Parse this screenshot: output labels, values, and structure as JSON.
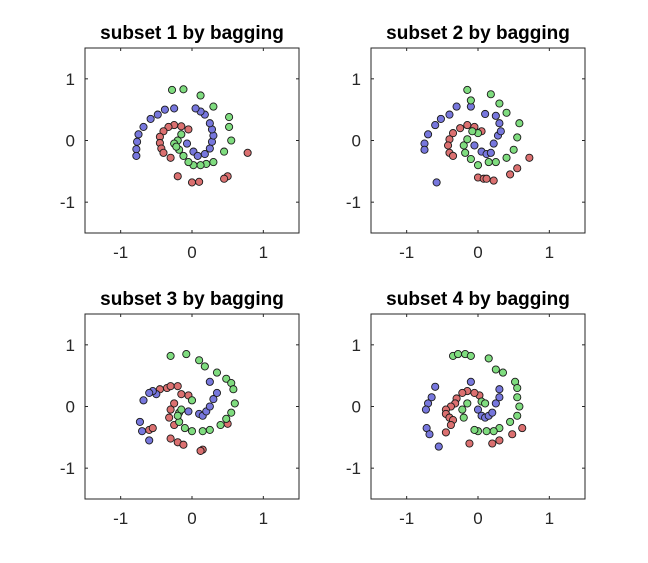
{
  "figure": {
    "background": "#ffffff"
  },
  "colors": {
    "red": "#db7070",
    "blue": "#7777dd",
    "green": "#7fdc7f"
  },
  "chart_data": [
    {
      "type": "scatter",
      "title": "subset 1 by bagging",
      "xlim": [
        -1.5,
        1.5
      ],
      "ylim": [
        -1.5,
        1.5
      ],
      "xticks": [
        -1,
        0,
        1
      ],
      "yticks": [
        -1,
        0,
        1
      ],
      "xlabel": "",
      "ylabel": "",
      "grid": false,
      "series": [
        {
          "color": "red",
          "points": [
            [
              -0.05,
              0.18
            ],
            [
              -0.15,
              0.23
            ],
            [
              -0.25,
              0.25
            ],
            [
              -0.33,
              0.22
            ],
            [
              -0.4,
              0.15
            ],
            [
              -0.45,
              0.06
            ],
            [
              -0.45,
              -0.04
            ],
            [
              -0.43,
              -0.13
            ],
            [
              -0.4,
              -0.2
            ],
            [
              -0.3,
              -0.28
            ],
            [
              -0.2,
              -0.58
            ],
            [
              0.0,
              -0.68
            ],
            [
              0.1,
              -0.67
            ],
            [
              0.5,
              -0.58
            ],
            [
              0.45,
              -0.62
            ],
            [
              0.78,
              -0.2
            ]
          ]
        },
        {
          "color": "blue",
          "points": [
            [
              -0.07,
              -0.05
            ],
            [
              0.02,
              -0.18
            ],
            [
              0.08,
              -0.25
            ],
            [
              0.18,
              -0.22
            ],
            [
              0.25,
              -0.13
            ],
            [
              0.28,
              -0.02
            ],
            [
              0.3,
              0.08
            ],
            [
              0.28,
              0.18
            ],
            [
              0.25,
              0.28
            ],
            [
              0.18,
              0.42
            ],
            [
              0.12,
              0.47
            ],
            [
              0.05,
              0.52
            ],
            [
              -0.25,
              0.52
            ],
            [
              -0.38,
              0.5
            ],
            [
              -0.48,
              0.42
            ],
            [
              -0.58,
              0.35
            ],
            [
              -0.68,
              0.22
            ],
            [
              -0.75,
              0.1
            ],
            [
              -0.77,
              -0.02
            ],
            [
              -0.78,
              -0.14
            ],
            [
              -0.78,
              -0.25
            ]
          ]
        },
        {
          "color": "green",
          "points": [
            [
              -0.28,
              0.82
            ],
            [
              -0.12,
              0.83
            ],
            [
              0.12,
              0.73
            ],
            [
              0.3,
              0.55
            ],
            [
              0.52,
              0.38
            ],
            [
              0.52,
              0.22
            ],
            [
              0.55,
              0.0
            ],
            [
              0.45,
              -0.18
            ],
            [
              0.3,
              -0.35
            ],
            [
              0.2,
              -0.38
            ],
            [
              0.12,
              -0.4
            ],
            [
              0.02,
              -0.4
            ],
            [
              -0.05,
              -0.35
            ],
            [
              -0.12,
              -0.25
            ],
            [
              -0.18,
              -0.15
            ],
            [
              -0.2,
              0.0
            ],
            [
              -0.15,
              0.1
            ],
            [
              -0.25,
              -0.05
            ],
            [
              -0.22,
              -0.1
            ]
          ]
        }
      ]
    },
    {
      "type": "scatter",
      "title": "subset 2 by bagging",
      "xlim": [
        -1.5,
        1.5
      ],
      "ylim": [
        -1.5,
        1.5
      ],
      "xticks": [
        -1,
        0,
        1
      ],
      "yticks": [
        -1,
        0,
        1
      ],
      "xlabel": "",
      "ylabel": "",
      "grid": false,
      "series": [
        {
          "color": "red",
          "points": [
            [
              0.05,
              0.15
            ],
            [
              -0.05,
              0.22
            ],
            [
              -0.15,
              0.25
            ],
            [
              -0.25,
              0.2
            ],
            [
              -0.35,
              0.12
            ],
            [
              -0.4,
              0.02
            ],
            [
              -0.42,
              -0.08
            ],
            [
              -0.4,
              -0.2
            ],
            [
              -0.35,
              -0.25
            ],
            [
              0.0,
              -0.6
            ],
            [
              0.08,
              -0.62
            ],
            [
              0.12,
              -0.62
            ],
            [
              0.22,
              -0.65
            ],
            [
              0.45,
              -0.55
            ],
            [
              0.55,
              -0.45
            ],
            [
              0.72,
              -0.28
            ]
          ]
        },
        {
          "color": "blue",
          "points": [
            [
              -0.05,
              -0.08
            ],
            [
              0.05,
              -0.18
            ],
            [
              0.12,
              -0.22
            ],
            [
              0.18,
              -0.2
            ],
            [
              0.22,
              -0.05
            ],
            [
              0.28,
              0.08
            ],
            [
              0.32,
              0.15
            ],
            [
              0.3,
              0.28
            ],
            [
              0.25,
              0.4
            ],
            [
              0.1,
              0.43
            ],
            [
              -0.1,
              0.55
            ],
            [
              -0.3,
              0.55
            ],
            [
              -0.4,
              0.42
            ],
            [
              -0.52,
              0.35
            ],
            [
              -0.6,
              0.25
            ],
            [
              -0.7,
              0.1
            ],
            [
              -0.75,
              -0.05
            ],
            [
              -0.75,
              -0.15
            ],
            [
              -0.58,
              -0.68
            ]
          ]
        },
        {
          "color": "green",
          "points": [
            [
              -0.15,
              0.82
            ],
            [
              -0.1,
              0.65
            ],
            [
              0.18,
              0.75
            ],
            [
              0.3,
              0.6
            ],
            [
              0.4,
              0.45
            ],
            [
              0.58,
              0.28
            ],
            [
              0.55,
              0.05
            ],
            [
              0.5,
              -0.15
            ],
            [
              0.4,
              -0.28
            ],
            [
              0.25,
              -0.35
            ],
            [
              0.15,
              -0.35
            ],
            [
              0.0,
              -0.4
            ],
            [
              -0.1,
              -0.3
            ],
            [
              -0.18,
              -0.2
            ],
            [
              -0.2,
              -0.08
            ],
            [
              -0.15,
              0.02
            ],
            [
              0.0,
              0.12
            ],
            [
              -0.08,
              0.15
            ]
          ]
        }
      ]
    },
    {
      "type": "scatter",
      "title": "subset 3 by bagging",
      "xlim": [
        -1.5,
        1.5
      ],
      "ylim": [
        -1.5,
        1.5
      ],
      "xticks": [
        -1,
        0,
        1
      ],
      "yticks": [
        -1,
        0,
        1
      ],
      "xlabel": "",
      "ylabel": "",
      "grid": false,
      "series": [
        {
          "color": "red",
          "points": [
            [
              -0.05,
              0.18
            ],
            [
              -0.15,
              0.2
            ],
            [
              -0.25,
              0.05
            ],
            [
              -0.3,
              -0.05
            ],
            [
              -0.32,
              -0.18
            ],
            [
              -0.25,
              -0.3
            ],
            [
              -0.3,
              -0.52
            ],
            [
              -0.2,
              -0.58
            ],
            [
              -0.12,
              -0.62
            ],
            [
              0.15,
              -0.7
            ],
            [
              0.12,
              -0.72
            ],
            [
              0.5,
              -0.28
            ],
            [
              -0.6,
              -0.38
            ],
            [
              -0.55,
              -0.35
            ],
            [
              -0.45,
              0.28
            ],
            [
              -0.35,
              0.3
            ],
            [
              -0.3,
              0.33
            ],
            [
              -0.2,
              0.33
            ]
          ]
        },
        {
          "color": "blue",
          "points": [
            [
              -0.05,
              -0.08
            ],
            [
              0.1,
              -0.12
            ],
            [
              0.15,
              -0.15
            ],
            [
              0.2,
              -0.08
            ],
            [
              0.25,
              0.0
            ],
            [
              0.3,
              0.12
            ],
            [
              0.35,
              0.22
            ],
            [
              0.25,
              0.4
            ],
            [
              -0.5,
              0.2
            ],
            [
              -0.55,
              0.25
            ],
            [
              -0.6,
              0.22
            ],
            [
              -0.68,
              0.1
            ],
            [
              -0.73,
              -0.25
            ],
            [
              -0.7,
              -0.4
            ],
            [
              -0.6,
              -0.55
            ]
          ]
        },
        {
          "color": "green",
          "points": [
            [
              -0.3,
              0.82
            ],
            [
              -0.08,
              0.85
            ],
            [
              0.1,
              0.75
            ],
            [
              0.18,
              0.65
            ],
            [
              0.35,
              0.55
            ],
            [
              0.48,
              0.45
            ],
            [
              0.55,
              0.38
            ],
            [
              0.58,
              0.28
            ],
            [
              0.6,
              0.05
            ],
            [
              0.55,
              -0.1
            ],
            [
              0.48,
              -0.2
            ],
            [
              0.4,
              -0.3
            ],
            [
              0.25,
              -0.38
            ],
            [
              0.15,
              -0.4
            ],
            [
              0.0,
              -0.4
            ],
            [
              -0.1,
              -0.35
            ],
            [
              -0.18,
              -0.25
            ],
            [
              -0.18,
              -0.1
            ],
            [
              -0.15,
              -0.05
            ],
            [
              -0.2,
              -0.15
            ],
            [
              0.0,
              0.1
            ]
          ]
        }
      ]
    },
    {
      "type": "scatter",
      "title": "subset 4 by bagging",
      "xlim": [
        -1.5,
        1.5
      ],
      "ylim": [
        -1.5,
        1.5
      ],
      "xticks": [
        -1,
        0,
        1
      ],
      "yticks": [
        -1,
        0,
        1
      ],
      "xlabel": "",
      "ylabel": "",
      "grid": false,
      "series": [
        {
          "color": "red",
          "points": [
            [
              0.02,
              0.18
            ],
            [
              -0.05,
              0.22
            ],
            [
              -0.15,
              0.25
            ],
            [
              -0.22,
              0.22
            ],
            [
              -0.3,
              0.13
            ],
            [
              -0.32,
              0.05
            ],
            [
              -0.38,
              0.0
            ],
            [
              -0.45,
              -0.05
            ],
            [
              -0.45,
              -0.12
            ],
            [
              -0.4,
              -0.18
            ],
            [
              -0.35,
              -0.22
            ],
            [
              -0.38,
              -0.3
            ],
            [
              -0.45,
              -0.42
            ],
            [
              -0.12,
              -0.6
            ],
            [
              0.2,
              -0.6
            ],
            [
              0.3,
              -0.55
            ],
            [
              0.48,
              -0.45
            ],
            [
              0.62,
              -0.35
            ]
          ]
        },
        {
          "color": "blue",
          "points": [
            [
              0.0,
              -0.05
            ],
            [
              0.05,
              -0.15
            ],
            [
              0.1,
              -0.18
            ],
            [
              0.15,
              -0.15
            ],
            [
              0.2,
              -0.1
            ],
            [
              0.25,
              0.05
            ],
            [
              0.3,
              0.15
            ],
            [
              0.3,
              0.28
            ],
            [
              -0.1,
              0.4
            ],
            [
              -0.6,
              0.32
            ],
            [
              -0.65,
              0.15
            ],
            [
              -0.7,
              0.05
            ],
            [
              -0.73,
              -0.05
            ],
            [
              -0.72,
              -0.35
            ],
            [
              -0.68,
              -0.45
            ],
            [
              -0.55,
              -0.65
            ]
          ]
        },
        {
          "color": "green",
          "points": [
            [
              -0.35,
              0.82
            ],
            [
              -0.28,
              0.85
            ],
            [
              -0.18,
              0.85
            ],
            [
              -0.1,
              0.82
            ],
            [
              0.15,
              0.78
            ],
            [
              0.25,
              0.6
            ],
            [
              0.35,
              0.55
            ],
            [
              0.52,
              0.4
            ],
            [
              0.55,
              0.3
            ],
            [
              0.55,
              0.15
            ],
            [
              0.58,
              0.0
            ],
            [
              0.55,
              -0.15
            ],
            [
              0.45,
              -0.25
            ],
            [
              0.3,
              -0.35
            ],
            [
              0.22,
              -0.4
            ],
            [
              0.12,
              -0.4
            ],
            [
              0.0,
              -0.4
            ],
            [
              -0.05,
              -0.38
            ],
            [
              -0.2,
              -0.18
            ],
            [
              -0.22,
              -0.05
            ],
            [
              -0.15,
              0.05
            ],
            [
              0.05,
              0.08
            ],
            [
              0.1,
              0.05
            ]
          ]
        }
      ]
    }
  ]
}
